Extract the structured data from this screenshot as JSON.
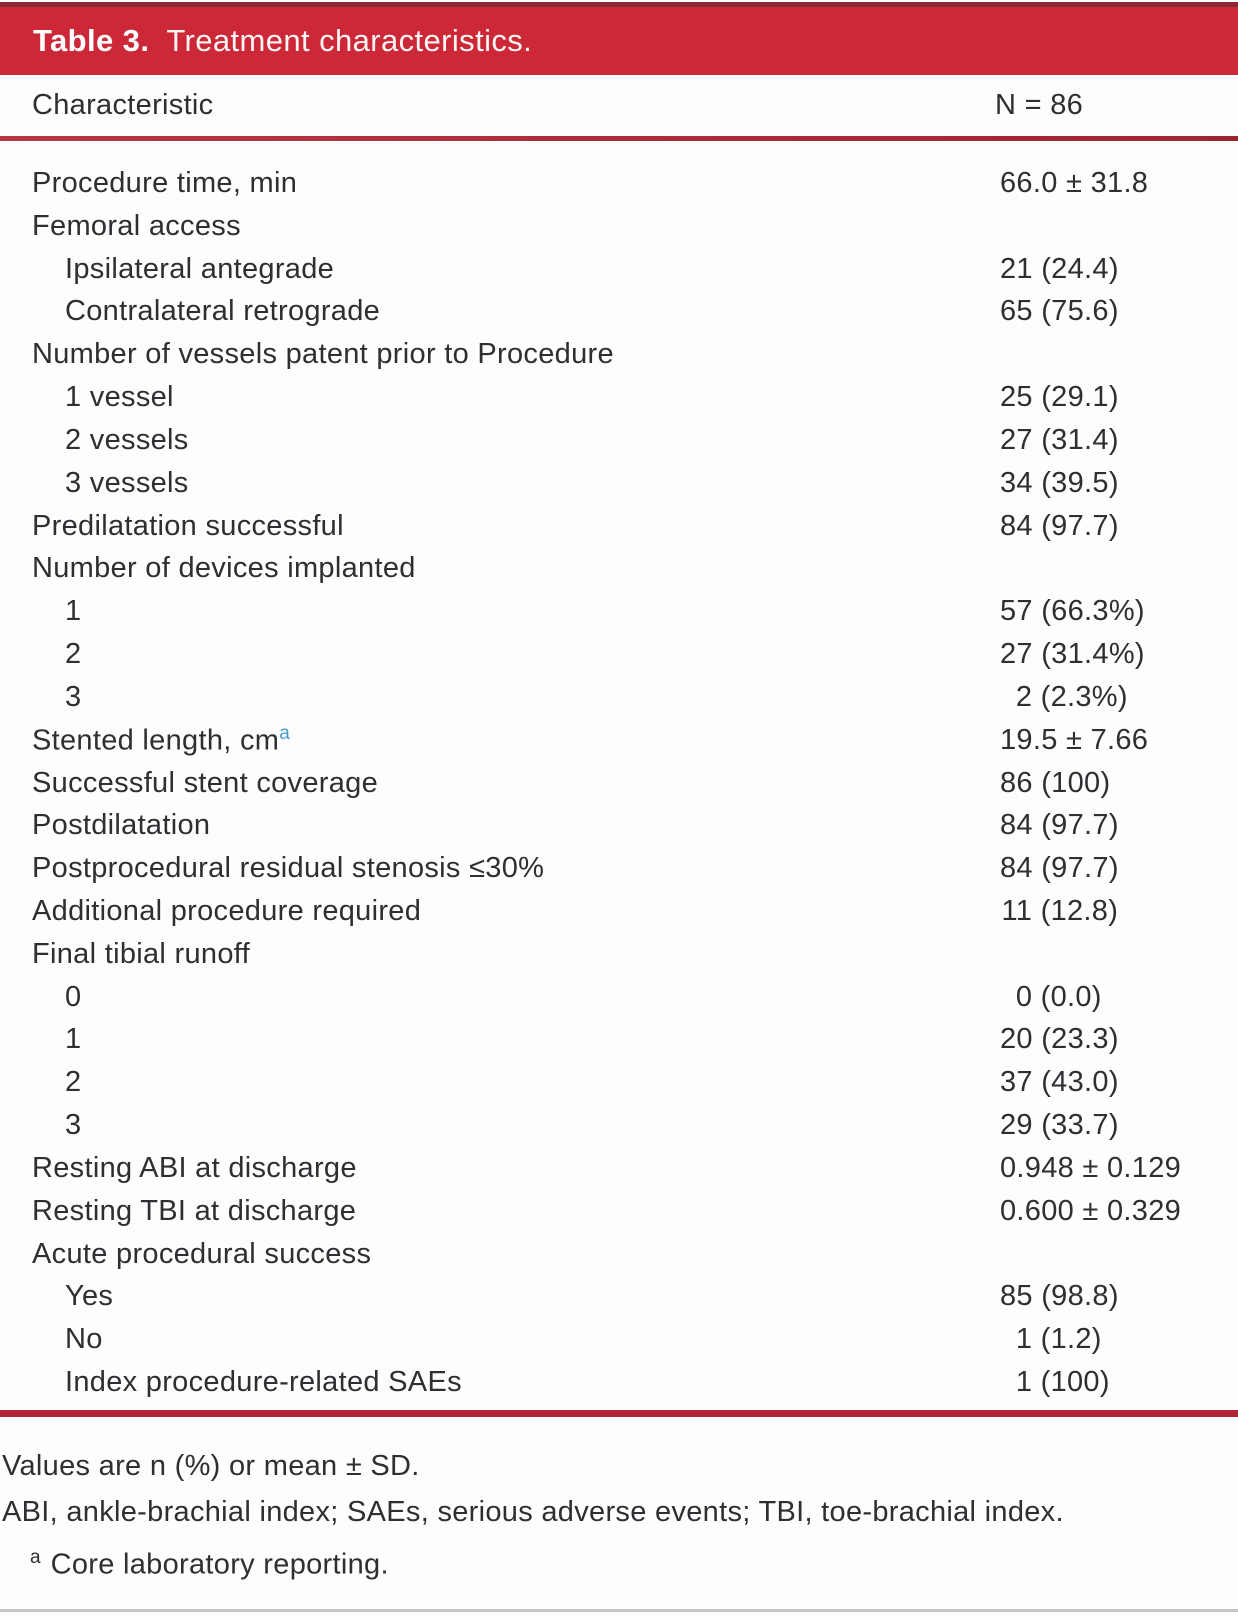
{
  "title": {
    "label": "Table 3.",
    "caption": "Treatment characteristics."
  },
  "table": {
    "header": {
      "characteristic": "Characteristic",
      "n_label": "N = 86"
    },
    "rows": [
      {
        "label": "Procedure time, min",
        "value": "66.0 ± 31.8",
        "indent": 0
      },
      {
        "label": "Femoral access",
        "value": "",
        "indent": 0
      },
      {
        "label": "Ipsilateral antegrade",
        "value": "21 (24.4)",
        "indent": 1
      },
      {
        "label": "Contralateral retrograde",
        "value": "65 (75.6)",
        "indent": 1
      },
      {
        "label": "Number of vessels patent prior to Procedure",
        "value": "",
        "indent": 0
      },
      {
        "label": "1 vessel",
        "value": "25 (29.1)",
        "indent": 1
      },
      {
        "label": "2 vessels",
        "value": "27 (31.4)",
        "indent": 1
      },
      {
        "label": "3 vessels",
        "value": "34 (39.5)",
        "indent": 1
      },
      {
        "label": "Predilatation successful",
        "value": "84 (97.7)",
        "indent": 0
      },
      {
        "label": "Number of devices implanted",
        "value": "",
        "indent": 0
      },
      {
        "label": "1",
        "value": "57 (66.3%)",
        "indent": 1
      },
      {
        "label": "2",
        "value": "27 (31.4%)",
        "indent": 1
      },
      {
        "label": "3",
        "value": "2 (2.3%)",
        "indent": 1
      },
      {
        "label": "Stented length, cm",
        "value": "19.5 ± 7.66",
        "indent": 0,
        "sup": "a"
      },
      {
        "label": "Successful stent coverage",
        "value": "86 (100)",
        "indent": 0
      },
      {
        "label": "Postdilatation",
        "value": "84 (97.7)",
        "indent": 0
      },
      {
        "label": "Postprocedural residual stenosis ≤30%",
        "value": "84 (97.7)",
        "indent": 0
      },
      {
        "label": "Additional procedure required",
        "value": "11 (12.8)",
        "indent": 0
      },
      {
        "label": "Final tibial runoff",
        "value": "",
        "indent": 0
      },
      {
        "label": "0",
        "value": "0 (0.0)",
        "indent": 1
      },
      {
        "label": "1",
        "value": "20 (23.3)",
        "indent": 1
      },
      {
        "label": "2",
        "value": "37 (43.0)",
        "indent": 1
      },
      {
        "label": "3",
        "value": "29 (33.7)",
        "indent": 1
      },
      {
        "label": "Resting ABI at discharge",
        "value": "0.948 ± 0.129",
        "indent": 0
      },
      {
        "label": "Resting TBI at discharge",
        "value": "0.600 ± 0.329",
        "indent": 0
      },
      {
        "label": "Acute procedural success",
        "value": "",
        "indent": 0
      },
      {
        "label": "Yes",
        "value": "85 (98.8)",
        "indent": 1
      },
      {
        "label": "No",
        "value": "1 (1.2)",
        "indent": 1
      },
      {
        "label": "Index procedure-related SAEs",
        "value": "1 (100)",
        "indent": 1
      }
    ]
  },
  "footnotes": {
    "line1": "Values are n (%) or mean ± SD.",
    "line2": "ABI, ankle-brachial index; SAEs, serious adverse events; TBI, toe-brachial index.",
    "line3_sup": "a",
    "line3": "Core laboratory reporting."
  },
  "colors": {
    "header_red": "#cd2837",
    "rule_red": "#b43743",
    "bottom_rule_red": "#b02433",
    "dark_red": "#8f2838",
    "superscript_blue": "#4a9bcd",
    "text_ink": "#2e2e33"
  }
}
